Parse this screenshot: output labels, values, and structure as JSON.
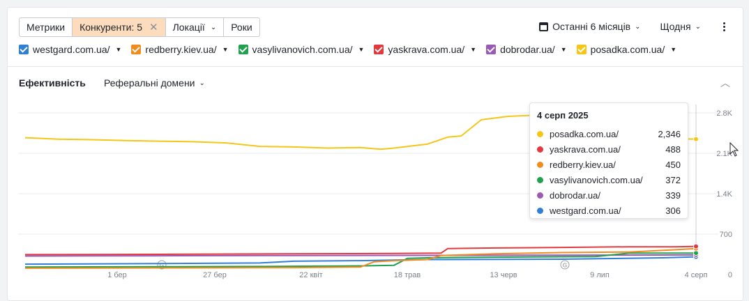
{
  "toolbar": {
    "metrics": "Метрики",
    "competitors": "Конкуренти: 5",
    "locations": "Локації",
    "years": "Роки"
  },
  "right_tools": {
    "period": "Останні 6 місяців",
    "granularity": "Щодня"
  },
  "legend": [
    {
      "label": "westgard.com.ua/",
      "color": "#2f7ed8"
    },
    {
      "label": "redberry.kiev.ua/",
      "color": "#f08c1e"
    },
    {
      "label": "vasylivanovich.com.ua/",
      "color": "#22a050"
    },
    {
      "label": "yaskrava.com.ua/",
      "color": "#e0393e"
    },
    {
      "label": "dobrodar.ua/",
      "color": "#9b59b6"
    },
    {
      "label": "posadka.com.ua/",
      "color": "#f5c518"
    }
  ],
  "section": {
    "title": "Ефективність",
    "subtitle": "Реферальні домени"
  },
  "tooltip": {
    "date": "4 серп 2025",
    "rows": [
      {
        "name": "posadka.com.ua/",
        "value": "2,346",
        "color": "#f5c518"
      },
      {
        "name": "yaskrava.com.ua/",
        "value": "488",
        "color": "#e0393e"
      },
      {
        "name": "redberry.kiev.ua/",
        "value": "450",
        "color": "#f08c1e"
      },
      {
        "name": "vasylivanovich.com.ua/",
        "value": "372",
        "color": "#22a050"
      },
      {
        "name": "dobrodar.ua/",
        "value": "339",
        "color": "#9b59b6"
      },
      {
        "name": "westgard.com.ua/",
        "value": "306",
        "color": "#2f7ed8"
      }
    ]
  },
  "chart_data": {
    "type": "line",
    "x_ticks": [
      "1 бер",
      "27 бер",
      "22 квіт",
      "18 трав",
      "13 черв",
      "9 лип",
      "4 серп"
    ],
    "y_ticks": [
      "0",
      "700",
      "1.4K",
      "2.1K",
      "2.8K"
    ],
    "ylim": [
      0,
      2800
    ],
    "grid": true,
    "series": [
      {
        "name": "posadka.com.ua/",
        "color": "#f5c518",
        "points": [
          [
            0,
            2370
          ],
          [
            0.05,
            2345
          ],
          [
            0.1,
            2335
          ],
          [
            0.15,
            2320
          ],
          [
            0.2,
            2310
          ],
          [
            0.25,
            2300
          ],
          [
            0.3,
            2280
          ],
          [
            0.35,
            2220
          ],
          [
            0.4,
            2210
          ],
          [
            0.45,
            2190
          ],
          [
            0.5,
            2200
          ],
          [
            0.53,
            2170
          ],
          [
            0.55,
            2190
          ],
          [
            0.6,
            2260
          ],
          [
            0.63,
            2380
          ],
          [
            0.65,
            2400
          ],
          [
            0.68,
            2680
          ],
          [
            0.72,
            2740
          ],
          [
            0.76,
            2760
          ],
          [
            0.8,
            2750
          ],
          [
            0.84,
            2750
          ],
          [
            0.88,
            2740
          ],
          [
            0.92,
            2745
          ],
          [
            0.96,
            2350
          ],
          [
            1.0,
            2346
          ]
        ]
      },
      {
        "name": "yaskrava.com.ua/",
        "color": "#e0393e",
        "points": [
          [
            0,
            345
          ],
          [
            0.2,
            350
          ],
          [
            0.4,
            360
          ],
          [
            0.55,
            365
          ],
          [
            0.62,
            370
          ],
          [
            0.63,
            450
          ],
          [
            0.7,
            460
          ],
          [
            0.8,
            470
          ],
          [
            0.9,
            480
          ],
          [
            0.97,
            480
          ],
          [
            1.0,
            488
          ]
        ]
      },
      {
        "name": "redberry.kiev.ua/",
        "color": "#f08c1e",
        "points": [
          [
            0,
            110
          ],
          [
            0.2,
            115
          ],
          [
            0.4,
            120
          ],
          [
            0.5,
            130
          ],
          [
            0.52,
            220
          ],
          [
            0.55,
            240
          ],
          [
            0.6,
            260
          ],
          [
            0.62,
            330
          ],
          [
            0.7,
            360
          ],
          [
            0.8,
            380
          ],
          [
            0.9,
            390
          ],
          [
            0.97,
            430
          ],
          [
            1.0,
            450
          ]
        ]
      },
      {
        "name": "vasylivanovich.com.ua/",
        "color": "#22a050",
        "points": [
          [
            0,
            130
          ],
          [
            0.2,
            135
          ],
          [
            0.35,
            140
          ],
          [
            0.5,
            150
          ],
          [
            0.55,
            160
          ],
          [
            0.57,
            280
          ],
          [
            0.6,
            290
          ],
          [
            0.7,
            300
          ],
          [
            0.85,
            310
          ],
          [
            0.9,
            370
          ],
          [
            1.0,
            372
          ]
        ]
      },
      {
        "name": "dobrodar.ua/",
        "color": "#9b59b6",
        "points": [
          [
            0,
            320
          ],
          [
            0.2,
            325
          ],
          [
            0.4,
            330
          ],
          [
            0.6,
            332
          ],
          [
            0.8,
            335
          ],
          [
            1.0,
            339
          ]
        ]
      },
      {
        "name": "westgard.com.ua/",
        "color": "#2f7ed8",
        "points": [
          [
            0,
            180
          ],
          [
            0.2,
            190
          ],
          [
            0.35,
            200
          ],
          [
            0.4,
            230
          ],
          [
            0.5,
            240
          ],
          [
            0.55,
            250
          ],
          [
            0.6,
            260
          ],
          [
            0.8,
            265
          ],
          [
            0.95,
            290
          ],
          [
            1.0,
            306
          ]
        ]
      }
    ]
  }
}
